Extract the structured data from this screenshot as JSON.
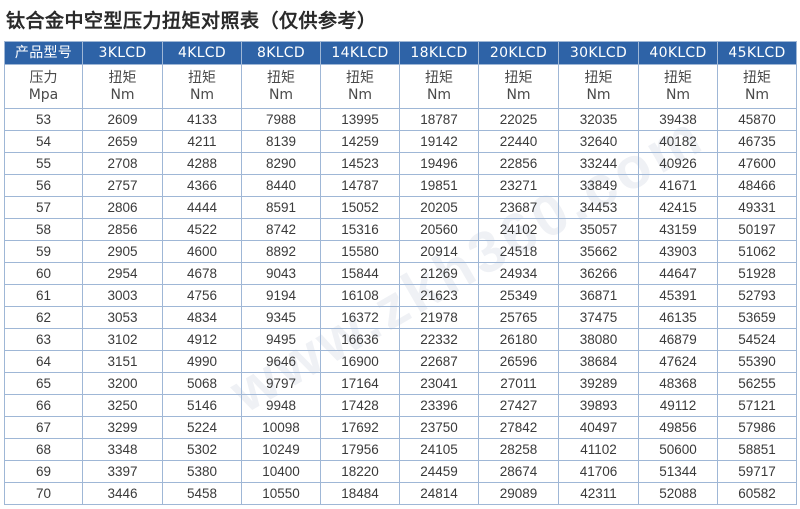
{
  "title": "钛合金中空型压力扭矩对照表（仅供参考）",
  "watermark": "www.zkh360.com",
  "colors": {
    "header_bg": "#2e63a7",
    "header_text": "#ffffff",
    "border": "#9fb7d6",
    "text": "#3a3a3a"
  },
  "table": {
    "corner_label": "产品型号",
    "models": [
      "3KLCD",
      "4KLCD",
      "8KLCD",
      "14KLCD",
      "18KLCD",
      "20KLCD",
      "30KLCD",
      "40KLCD",
      "45KLCD"
    ],
    "pressure_label": "压力",
    "pressure_unit": "Mpa",
    "torque_label": "扭矩",
    "torque_unit": "Nm",
    "rows": [
      [
        "53",
        "2609",
        "4133",
        "7988",
        "13995",
        "18787",
        "22025",
        "32035",
        "39438",
        "45870"
      ],
      [
        "54",
        "2659",
        "4211",
        "8139",
        "14259",
        "19142",
        "22440",
        "32640",
        "40182",
        "46735"
      ],
      [
        "55",
        "2708",
        "4288",
        "8290",
        "14523",
        "19496",
        "22856",
        "33244",
        "40926",
        "47600"
      ],
      [
        "56",
        "2757",
        "4366",
        "8440",
        "14787",
        "19851",
        "23271",
        "33849",
        "41671",
        "48466"
      ],
      [
        "57",
        "2806",
        "4444",
        "8591",
        "15052",
        "20205",
        "23687",
        "34453",
        "42415",
        "49331"
      ],
      [
        "58",
        "2856",
        "4522",
        "8742",
        "15316",
        "20560",
        "24102",
        "35057",
        "43159",
        "50197"
      ],
      [
        "59",
        "2905",
        "4600",
        "8892",
        "15580",
        "20914",
        "24518",
        "35662",
        "43903",
        "51062"
      ],
      [
        "60",
        "2954",
        "4678",
        "9043",
        "15844",
        "21269",
        "24934",
        "36266",
        "44647",
        "51928"
      ],
      [
        "61",
        "3003",
        "4756",
        "9194",
        "16108",
        "21623",
        "25349",
        "36871",
        "45391",
        "52793"
      ],
      [
        "62",
        "3053",
        "4834",
        "9345",
        "16372",
        "21978",
        "25765",
        "37475",
        "46135",
        "53659"
      ],
      [
        "63",
        "3102",
        "4912",
        "9495",
        "16636",
        "22332",
        "26180",
        "38080",
        "46879",
        "54524"
      ],
      [
        "64",
        "3151",
        "4990",
        "9646",
        "16900",
        "22687",
        "26596",
        "38684",
        "47624",
        "55390"
      ],
      [
        "65",
        "3200",
        "5068",
        "9797",
        "17164",
        "23041",
        "27011",
        "39289",
        "48368",
        "56255"
      ],
      [
        "66",
        "3250",
        "5146",
        "9948",
        "17428",
        "23396",
        "27427",
        "39893",
        "49112",
        "57121"
      ],
      [
        "67",
        "3299",
        "5224",
        "10098",
        "17692",
        "23750",
        "27842",
        "40497",
        "49856",
        "57986"
      ],
      [
        "68",
        "3348",
        "5302",
        "10249",
        "17956",
        "24105",
        "28258",
        "41102",
        "50600",
        "58851"
      ],
      [
        "69",
        "3397",
        "5380",
        "10400",
        "18220",
        "24459",
        "28674",
        "41706",
        "51344",
        "59717"
      ],
      [
        "70",
        "3446",
        "5458",
        "10550",
        "18484",
        "24814",
        "29089",
        "42311",
        "52088",
        "60582"
      ]
    ]
  }
}
